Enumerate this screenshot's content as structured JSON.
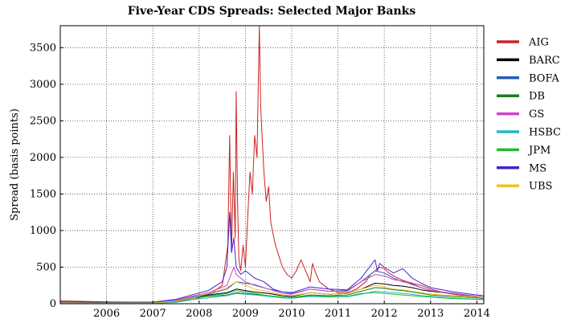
{
  "chart_data": {
    "type": "line",
    "title": "Five-Year CDS Spreads: Selected Major Banks",
    "xlabel": "",
    "ylabel": "Spread (basis points)",
    "xlim": [
      2005.0,
      2014.15
    ],
    "ylim": [
      0,
      3800
    ],
    "x_ticks": [
      2006,
      2007,
      2008,
      2009,
      2010,
      2011,
      2012,
      2013,
      2014
    ],
    "y_ticks": [
      0,
      500,
      1000,
      1500,
      2000,
      2500,
      3000,
      3500
    ],
    "grid": true,
    "legend_position": "right, outside plot",
    "series": [
      {
        "name": "AIG",
        "color": "#cc2222",
        "x": [
          2005.0,
          2006.0,
          2007.0,
          2007.5,
          2007.9,
          2008.2,
          2008.5,
          2008.62,
          2008.66,
          2008.7,
          2008.74,
          2008.78,
          2008.8,
          2008.83,
          2008.86,
          2008.9,
          2008.95,
          2009.0,
          2009.05,
          2009.1,
          2009.15,
          2009.2,
          2009.25,
          2009.3,
          2009.33,
          2009.36,
          2009.4,
          2009.45,
          2009.5,
          2009.55,
          2009.6,
          2009.65,
          2009.7,
          2009.8,
          2009.9,
          2010.0,
          2010.1,
          2010.2,
          2010.3,
          2010.4,
          2010.45,
          2010.5,
          2010.6,
          2010.7,
          2010.8,
          2010.9,
          2011.0,
          2011.2,
          2011.4,
          2011.6,
          2011.7,
          2011.8,
          2011.9,
          2012.0,
          2012.1,
          2012.2,
          2012.3,
          2012.4,
          2012.5,
          2012.6,
          2012.8,
          2013.0,
          2013.3,
          2013.6,
          2014.0,
          2014.15
        ],
        "y": [
          40,
          25,
          20,
          30,
          60,
          120,
          250,
          800,
          2300,
          700,
          1800,
          900,
          2900,
          1400,
          600,
          450,
          800,
          500,
          1200,
          1800,
          1500,
          2300,
          2000,
          3800,
          2700,
          2300,
          1800,
          1400,
          1600,
          1100,
          950,
          800,
          700,
          500,
          400,
          350,
          450,
          600,
          450,
          300,
          550,
          450,
          300,
          250,
          200,
          180,
          150,
          150,
          200,
          300,
          400,
          450,
          500,
          480,
          420,
          380,
          350,
          320,
          300,
          280,
          250,
          200,
          150,
          120,
          100,
          90
        ]
      },
      {
        "name": "BARC",
        "color": "#000000",
        "x": [
          2005.0,
          2006.0,
          2007.0,
          2007.5,
          2007.9,
          2008.2,
          2008.6,
          2008.8,
          2009.0,
          2009.2,
          2009.5,
          2009.8,
          2010.0,
          2010.4,
          2010.8,
          2011.2,
          2011.5,
          2011.8,
          2012.0,
          2012.2,
          2012.4,
          2012.6,
          2012.8,
          2013.0,
          2013.5,
          2014.0,
          2014.15
        ],
        "y": [
          10,
          8,
          8,
          30,
          90,
          120,
          150,
          200,
          180,
          160,
          140,
          110,
          100,
          150,
          130,
          140,
          200,
          280,
          270,
          250,
          240,
          220,
          190,
          170,
          140,
          100,
          90
        ]
      },
      {
        "name": "BOFA",
        "color": "#1f5fbf",
        "x": [
          2005.0,
          2006.0,
          2007.0,
          2007.5,
          2007.9,
          2008.2,
          2008.6,
          2008.8,
          2009.0,
          2009.2,
          2009.5,
          2009.8,
          2010.0,
          2010.4,
          2010.8,
          2011.2,
          2011.5,
          2011.8,
          2012.0,
          2012.2,
          2012.4,
          2012.6,
          2012.8,
          2013.0,
          2013.5,
          2014.0,
          2014.15
        ],
        "y": [
          15,
          12,
          12,
          40,
          100,
          130,
          200,
          300,
          280,
          260,
          200,
          160,
          140,
          200,
          170,
          180,
          300,
          450,
          420,
          350,
          300,
          270,
          220,
          180,
          140,
          100,
          90
        ]
      },
      {
        "name": "DB",
        "color": "#1e7a1e",
        "x": [
          2005.0,
          2006.0,
          2007.0,
          2007.5,
          2007.9,
          2008.2,
          2008.6,
          2008.8,
          2009.0,
          2009.2,
          2009.5,
          2009.8,
          2010.0,
          2010.4,
          2010.8,
          2011.2,
          2011.5,
          2011.8,
          2012.0,
          2012.2,
          2012.4,
          2012.6,
          2012.8,
          2013.0,
          2013.5,
          2014.0,
          2014.15
        ],
        "y": [
          12,
          10,
          10,
          30,
          80,
          100,
          120,
          150,
          140,
          130,
          110,
          90,
          85,
          120,
          110,
          120,
          170,
          220,
          210,
          190,
          180,
          160,
          140,
          120,
          100,
          80,
          70
        ]
      },
      {
        "name": "GS",
        "color": "#d040d0",
        "x": [
          2005.0,
          2006.0,
          2007.0,
          2007.5,
          2007.9,
          2008.2,
          2008.6,
          2008.75,
          2008.8,
          2009.0,
          2009.2,
          2009.5,
          2009.8,
          2010.0,
          2010.4,
          2010.8,
          2011.2,
          2011.5,
          2011.8,
          2012.0,
          2012.2,
          2012.4,
          2012.6,
          2012.8,
          2013.0,
          2013.5,
          2014.0,
          2014.15
        ],
        "y": [
          20,
          18,
          18,
          50,
          110,
          150,
          250,
          500,
          400,
          300,
          250,
          200,
          140,
          130,
          200,
          170,
          170,
          300,
          400,
          380,
          330,
          310,
          260,
          220,
          180,
          140,
          100,
          90
        ]
      },
      {
        "name": "HSBC",
        "color": "#20b8c8",
        "x": [
          2005.0,
          2006.0,
          2007.0,
          2007.5,
          2007.9,
          2008.2,
          2008.6,
          2008.8,
          2009.0,
          2009.2,
          2009.5,
          2009.8,
          2010.0,
          2010.4,
          2010.8,
          2011.2,
          2011.5,
          2011.8,
          2012.0,
          2012.2,
          2012.4,
          2012.6,
          2012.8,
          2013.0,
          2013.5,
          2014.0,
          2014.15
        ],
        "y": [
          8,
          6,
          6,
          20,
          60,
          80,
          110,
          140,
          130,
          120,
          100,
          80,
          75,
          100,
          90,
          95,
          130,
          170,
          160,
          150,
          140,
          130,
          110,
          100,
          80,
          60,
          55
        ]
      },
      {
        "name": "JPM",
        "color": "#22bb33",
        "x": [
          2005.0,
          2006.0,
          2007.0,
          2007.5,
          2007.9,
          2008.2,
          2008.6,
          2008.8,
          2009.0,
          2009.2,
          2009.5,
          2009.8,
          2010.0,
          2010.4,
          2010.8,
          2011.2,
          2011.5,
          2011.8,
          2012.0,
          2012.2,
          2012.4,
          2012.6,
          2012.8,
          2013.0,
          2013.5,
          2014.0,
          2014.15
        ],
        "y": [
          15,
          12,
          12,
          35,
          80,
          110,
          140,
          180,
          160,
          140,
          110,
          90,
          80,
          110,
          100,
          100,
          140,
          150,
          140,
          130,
          120,
          110,
          100,
          90,
          70,
          60,
          55
        ]
      },
      {
        "name": "MS",
        "color": "#4422cc",
        "x": [
          2005.0,
          2006.0,
          2007.0,
          2007.5,
          2007.9,
          2008.2,
          2008.5,
          2008.6,
          2008.66,
          2008.7,
          2008.75,
          2008.8,
          2008.9,
          2009.0,
          2009.2,
          2009.4,
          2009.6,
          2009.8,
          2010.0,
          2010.4,
          2010.8,
          2011.2,
          2011.5,
          2011.8,
          2011.85,
          2011.9,
          2012.0,
          2012.2,
          2012.4,
          2012.6,
          2012.8,
          2013.0,
          2013.5,
          2014.0,
          2014.15
        ],
        "y": [
          25,
          22,
          22,
          60,
          130,
          180,
          300,
          500,
          1250,
          700,
          900,
          500,
          400,
          450,
          350,
          300,
          200,
          160,
          150,
          230,
          200,
          190,
          350,
          600,
          450,
          550,
          500,
          420,
          480,
          350,
          280,
          220,
          160,
          120,
          110
        ]
      },
      {
        "name": "UBS",
        "color": "#f0c020",
        "x": [
          2005.0,
          2006.0,
          2007.0,
          2007.5,
          2007.9,
          2008.2,
          2008.6,
          2008.8,
          2009.0,
          2009.2,
          2009.5,
          2009.8,
          2010.0,
          2010.4,
          2010.8,
          2011.2,
          2011.5,
          2011.8,
          2012.0,
          2012.2,
          2012.4,
          2012.6,
          2012.8,
          2013.0,
          2013.5,
          2014.0,
          2014.15
        ],
        "y": [
          10,
          8,
          8,
          35,
          90,
          140,
          220,
          300,
          250,
          200,
          160,
          120,
          110,
          150,
          130,
          140,
          200,
          250,
          230,
          200,
          190,
          170,
          150,
          130,
          110,
          90,
          85
        ]
      }
    ]
  }
}
